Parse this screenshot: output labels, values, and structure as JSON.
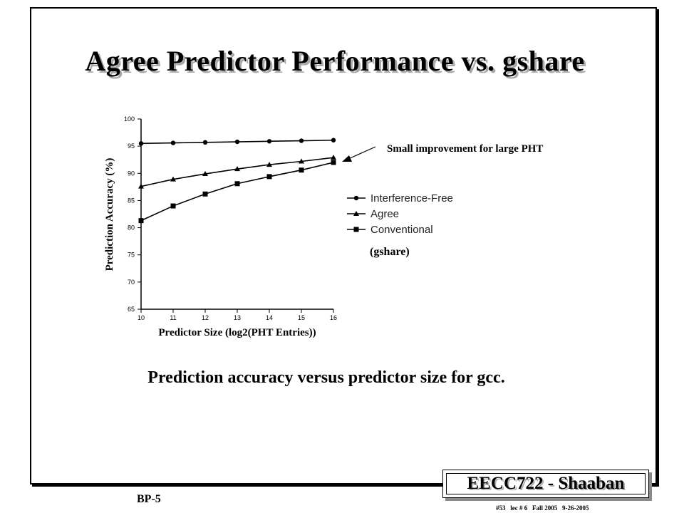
{
  "slide": {
    "title": "Agree Predictor Performance vs. gshare",
    "annotation": "Small improvement for large PHT",
    "caption": "Prediction accuracy versus predictor size for gcc.",
    "brand": "EECC722 - Shaaban",
    "page_label": "BP-5",
    "footer_meta": "#53   lec # 6   Fall 2005   9-26-2005"
  },
  "chart_data": {
    "type": "line",
    "x": [
      10,
      11,
      12,
      13,
      14,
      15,
      16
    ],
    "series": [
      {
        "name": "Interference-Free",
        "marker": "circle",
        "values": [
          95.5,
          95.6,
          95.7,
          95.8,
          95.9,
          96.0,
          96.1
        ]
      },
      {
        "name": "Agree",
        "marker": "triangle",
        "values": [
          87.6,
          88.9,
          89.9,
          90.8,
          91.6,
          92.2,
          92.9
        ]
      },
      {
        "name": "Conventional",
        "marker": "square",
        "values": [
          81.3,
          84.0,
          86.2,
          88.1,
          89.4,
          90.6,
          92.0
        ]
      }
    ],
    "legend_note": "(gshare)",
    "xlabel": "Predictor Size (log2(PHT Entries))",
    "ylabel": "Prediction Accuracy (%)",
    "xlim": [
      10,
      16
    ],
    "ylim": [
      65,
      100
    ],
    "yticks": [
      65,
      70,
      75,
      80,
      85,
      90,
      95,
      100
    ],
    "xticks": [
      10,
      11,
      12,
      13,
      14,
      15,
      16
    ],
    "grid": false,
    "legend_position": "right"
  }
}
